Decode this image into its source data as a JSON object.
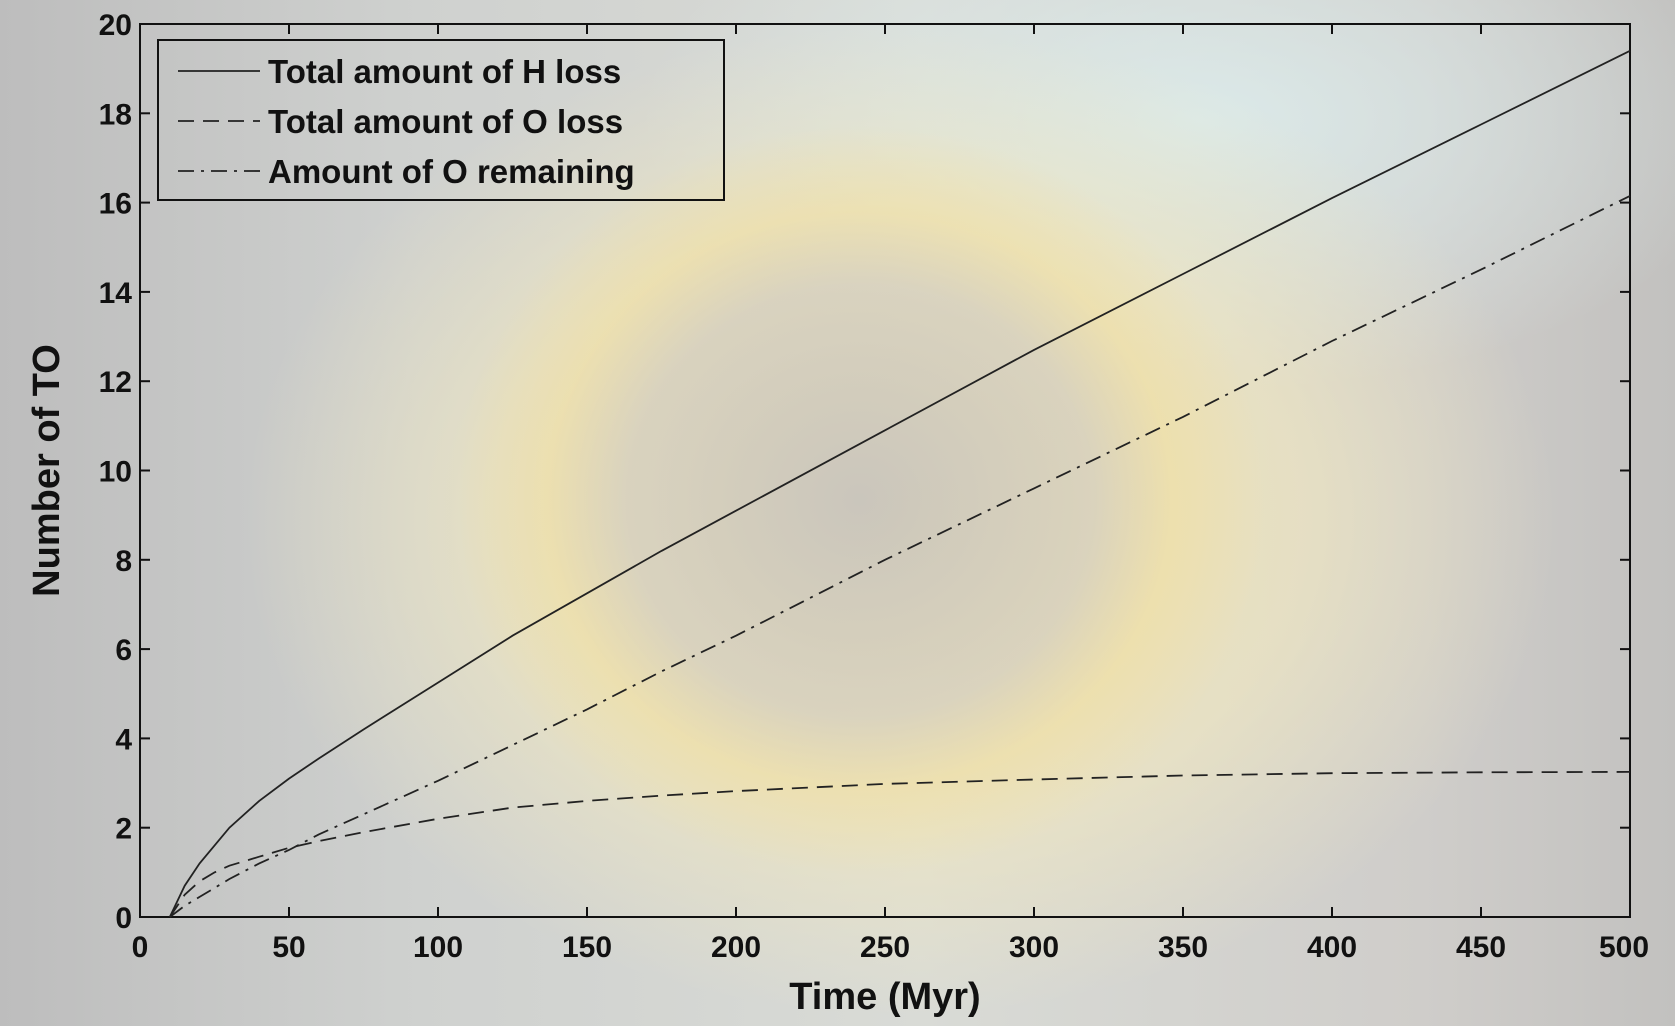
{
  "chart_data": {
    "type": "line",
    "title": "",
    "xlabel": "Time (Myr)",
    "ylabel": "Number of TO",
    "xlim": [
      0,
      500
    ],
    "ylim": [
      0,
      20
    ],
    "xticks": [
      0,
      50,
      100,
      150,
      200,
      250,
      300,
      350,
      400,
      450,
      500
    ],
    "yticks": [
      0,
      2,
      4,
      6,
      8,
      10,
      12,
      14,
      16,
      18,
      20
    ],
    "grid": false,
    "legend_position": "top-left",
    "series": [
      {
        "name": "Total amount of H loss",
        "style": "solid",
        "x": [
          10,
          15,
          20,
          25,
          30,
          40,
          50,
          60,
          75,
          100,
          125,
          150,
          175,
          200,
          250,
          300,
          350,
          400,
          450,
          500
        ],
        "y": [
          0,
          0.7,
          1.2,
          1.6,
          2.0,
          2.6,
          3.1,
          3.55,
          4.2,
          5.25,
          6.3,
          7.25,
          8.2,
          9.1,
          10.9,
          12.7,
          14.4,
          16.1,
          17.75,
          19.4
        ]
      },
      {
        "name": "Total amount of O loss",
        "style": "dashed",
        "x": [
          10,
          15,
          20,
          25,
          30,
          40,
          50,
          60,
          75,
          100,
          125,
          150,
          175,
          200,
          250,
          300,
          350,
          400,
          450,
          500
        ],
        "y": [
          0,
          0.5,
          0.8,
          1.0,
          1.15,
          1.35,
          1.55,
          1.7,
          1.9,
          2.2,
          2.45,
          2.6,
          2.72,
          2.82,
          2.98,
          3.08,
          3.17,
          3.22,
          3.24,
          3.25
        ]
      },
      {
        "name": "Amount of O remaining",
        "style": "dashdot",
        "x": [
          10,
          15,
          20,
          25,
          30,
          40,
          50,
          60,
          75,
          100,
          125,
          150,
          175,
          200,
          250,
          300,
          350,
          400,
          450,
          500
        ],
        "y": [
          0,
          0.25,
          0.45,
          0.65,
          0.85,
          1.2,
          1.5,
          1.85,
          2.3,
          3.05,
          3.85,
          4.65,
          5.5,
          6.3,
          8.0,
          9.6,
          11.2,
          12.9,
          14.5,
          16.15
        ]
      }
    ]
  }
}
